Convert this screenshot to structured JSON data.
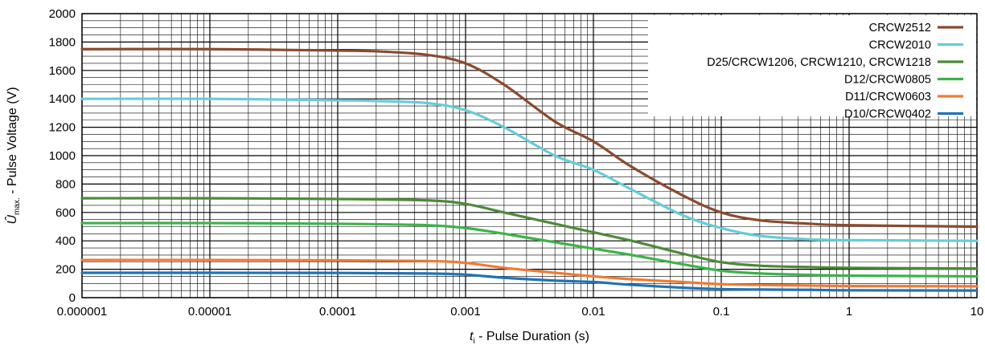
{
  "chart_data": {
    "type": "line",
    "x_scale": "log",
    "xlim": [
      1e-06,
      10
    ],
    "ylim": [
      0,
      2000
    ],
    "grid": true,
    "legend_position": "top-right",
    "x_tick_labels": [
      "0.000001",
      "0.00001",
      "0.0001",
      "0.001",
      "0.01",
      "0.1",
      "1",
      "10"
    ],
    "y_tick_labels": [
      "0",
      "200",
      "400",
      "600",
      "800",
      "1000",
      "1200",
      "1400",
      "1600",
      "1800",
      "2000"
    ],
    "xlabel": {
      "symbol": "t",
      "sub": "i",
      "text": " - Pulse Duration (s)"
    },
    "ylabel": {
      "symbol": "Û",
      "sub": "max.",
      "text": " - Pulse Voltage (V)"
    },
    "series": [
      {
        "name": "CRCW2512",
        "color": "#8B4A2F",
        "x": [
          1e-06,
          1e-05,
          0.0001,
          0.0002,
          0.0005,
          0.001,
          0.002,
          0.005,
          0.01,
          0.02,
          0.05,
          0.1,
          0.2,
          0.5,
          1,
          10
        ],
        "y": [
          1750,
          1750,
          1740,
          1735,
          1710,
          1650,
          1500,
          1240,
          1100,
          920,
          720,
          600,
          545,
          520,
          510,
          500
        ]
      },
      {
        "name": "CRCW2010",
        "color": "#66CCD9",
        "x": [
          1e-06,
          1e-05,
          0.0001,
          0.0002,
          0.0005,
          0.001,
          0.002,
          0.005,
          0.01,
          0.02,
          0.05,
          0.1,
          0.2,
          0.5,
          1,
          10
        ],
        "y": [
          1400,
          1400,
          1390,
          1385,
          1370,
          1320,
          1200,
          1000,
          900,
          760,
          580,
          490,
          435,
          410,
          405,
          400
        ]
      },
      {
        "name": "D25/CRCW1206, CRCW1210, CRCW1218",
        "color": "#4E8A3A",
        "x": [
          1e-06,
          1e-05,
          0.0001,
          0.0005,
          0.001,
          0.002,
          0.005,
          0.01,
          0.02,
          0.05,
          0.1,
          0.2,
          0.5,
          1,
          10
        ],
        "y": [
          700,
          700,
          695,
          685,
          660,
          600,
          520,
          460,
          400,
          310,
          250,
          225,
          215,
          210,
          205
        ]
      },
      {
        "name": "D12/CRCW0805",
        "color": "#3BB34A",
        "x": [
          1e-06,
          1e-05,
          0.0001,
          0.0005,
          0.001,
          0.002,
          0.005,
          0.01,
          0.02,
          0.05,
          0.1,
          0.2,
          0.5,
          1,
          10
        ],
        "y": [
          525,
          525,
          520,
          510,
          490,
          450,
          390,
          345,
          300,
          235,
          190,
          170,
          160,
          155,
          150
        ]
      },
      {
        "name": "D11/CRCW0603",
        "color": "#F07A32",
        "x": [
          1e-06,
          1e-05,
          0.0001,
          0.0005,
          0.001,
          0.002,
          0.005,
          0.01,
          0.02,
          0.05,
          0.1,
          0.2,
          0.5,
          1,
          10
        ],
        "y": [
          265,
          265,
          263,
          258,
          245,
          210,
          175,
          150,
          130,
          110,
          95,
          90,
          85,
          82,
          80
        ]
      },
      {
        "name": "D10/CRCW0402",
        "color": "#1F73B7",
        "x": [
          1e-06,
          1e-05,
          0.0001,
          0.0005,
          0.001,
          0.002,
          0.005,
          0.01,
          0.02,
          0.05,
          0.1,
          0.2,
          0.5,
          1,
          10
        ],
        "y": [
          175,
          175,
          174,
          170,
          162,
          140,
          120,
          110,
          90,
          70,
          60,
          57,
          55,
          52,
          50
        ]
      }
    ]
  }
}
